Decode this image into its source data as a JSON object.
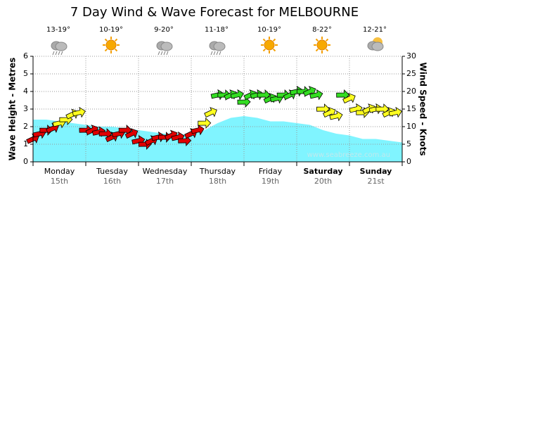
{
  "chart_data": {
    "type": "wind-wave",
    "title": "7 Day Wind & Wave Forecast for MELBOURNE",
    "y_label": "Wave Height - Metres",
    "y2_label": "Wind Speed - Knots",
    "watermark": "www.seabreeze.com.au",
    "xlim": [
      0,
      168
    ],
    "ylim": [
      0,
      6
    ],
    "yticks": [
      0,
      1,
      2,
      3,
      4,
      5,
      6
    ],
    "y2lim": [
      0,
      30
    ],
    "y2ticks": [
      0,
      5,
      10,
      15,
      20,
      25,
      30
    ],
    "grid": true,
    "days": {
      "categories": [
        "Monday",
        "Tuesday",
        "Wednesday",
        "Thursday",
        "Friday",
        "Saturday",
        "Sunday"
      ],
      "dates": [
        "15th",
        "16th",
        "17th",
        "18th",
        "19th",
        "20th",
        "21st"
      ],
      "bold": [
        false,
        false,
        false,
        false,
        false,
        true,
        true
      ]
    },
    "forecast": {
      "temps": [
        "13-19°",
        "10-19°",
        "9-20°",
        "11-18°",
        "10-19°",
        "8-22°",
        "12-21°"
      ],
      "icons": [
        "rain",
        "sun",
        "rain",
        "rain",
        "sun",
        "sun",
        "cloud"
      ]
    },
    "series": [
      {
        "type": "area",
        "color": "#80f4ff",
        "x": [
          0,
          6,
          12,
          18,
          24,
          30,
          36,
          42,
          48,
          54,
          60,
          66,
          72,
          78,
          84,
          90,
          96,
          102,
          108,
          114,
          120,
          126,
          132,
          138,
          144,
          150,
          156,
          162,
          168
        ],
        "values": [
          2.4,
          2.4,
          2.3,
          2.2,
          2.1,
          2.0,
          2.0,
          1.9,
          1.8,
          1.7,
          1.6,
          1.6,
          1.5,
          1.8,
          2.2,
          2.5,
          2.6,
          2.5,
          2.3,
          2.3,
          2.2,
          2.1,
          1.8,
          1.6,
          1.5,
          1.3,
          1.3,
          1.2,
          1.1
        ]
      },
      {
        "type": "arrows",
        "axis": "y2",
        "x": [
          0,
          3,
          6,
          9,
          12,
          15,
          18,
          21,
          24,
          27,
          30,
          33,
          36,
          39,
          42,
          45,
          48,
          51,
          54,
          57,
          60,
          63,
          66,
          69,
          72,
          75,
          78,
          81,
          84,
          87,
          90,
          93,
          96,
          99,
          102,
          105,
          108,
          111,
          114,
          117,
          120,
          123,
          126,
          129,
          132,
          135,
          138,
          141,
          144,
          147,
          150,
          153,
          156,
          159,
          162,
          165
        ],
        "values": [
          6.5,
          8,
          9,
          9.5,
          11,
          12,
          13.5,
          14,
          9,
          9,
          8.5,
          8,
          7,
          8,
          9,
          8,
          6,
          5,
          6,
          7,
          7,
          7.5,
          7,
          6,
          8,
          9,
          11,
          14,
          19,
          19,
          19,
          19,
          17,
          19,
          19,
          19,
          18,
          18,
          19,
          19,
          20,
          20,
          20,
          19,
          15,
          14,
          13,
          19,
          18,
          15,
          14,
          15,
          15,
          15,
          14,
          14
        ],
        "colors": [
          "#e00000",
          "#e00000",
          "#e00000",
          "#e00000",
          "#ffff20",
          "#ffff20",
          "#ffff20",
          "#ffff20",
          "#e00000",
          "#e00000",
          "#e00000",
          "#e00000",
          "#e00000",
          "#e00000",
          "#e00000",
          "#e00000",
          "#e00000",
          "#e00000",
          "#e00000",
          "#e00000",
          "#e00000",
          "#e00000",
          "#e00000",
          "#e00000",
          "#e00000",
          "#e00000",
          "#ffff20",
          "#ffff20",
          "#33dd22",
          "#33dd22",
          "#33dd22",
          "#33dd22",
          "#33dd22",
          "#33dd22",
          "#33dd22",
          "#33dd22",
          "#33dd22",
          "#33dd22",
          "#33dd22",
          "#33dd22",
          "#33dd22",
          "#33dd22",
          "#33dd22",
          "#33dd22",
          "#ffff20",
          "#ffff20",
          "#ffff20",
          "#33dd22",
          "#ffff20",
          "#ffff20",
          "#ffff20",
          "#ffff20",
          "#ffff20",
          "#ffff20",
          "#ffff20",
          "#ffff20"
        ]
      }
    ]
  }
}
